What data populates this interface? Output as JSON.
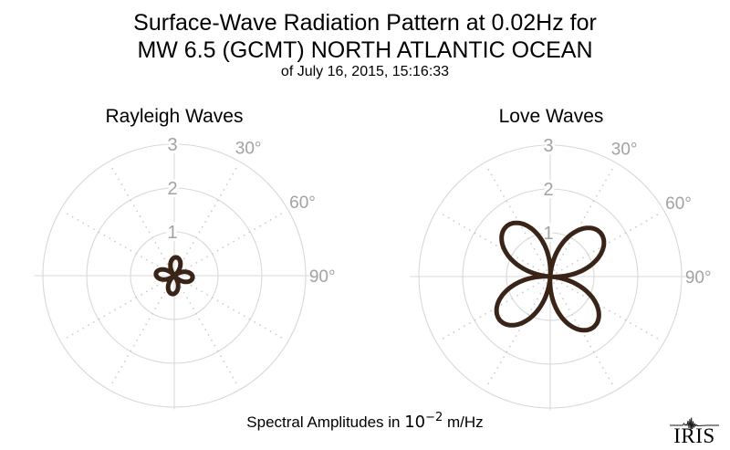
{
  "page": {
    "title_line1": "Surface-Wave Radiation Pattern at 0.02Hz for",
    "title_line2": "MW 6.5 (GCMT) NORTH ATLANTIC OCEAN",
    "subtitle": "of July 16, 2015, 15:16:33",
    "footer": {
      "prefix": "Spectral Amplitudes in ",
      "base": "10",
      "exponent": "−2",
      "suffix": " m/Hz"
    },
    "logo_text": "IRIS"
  },
  "colors": {
    "curve": "#3A2417",
    "grid": "#D8D8D8",
    "grid_dots": "#C8C8C8",
    "tick_label": "#A2A2A2",
    "text": "#000000",
    "background": "#FFFFFF"
  },
  "chart_data": [
    {
      "type": "line",
      "projection": "polar",
      "title": "Rayleigh Waves",
      "pattern_function": "abs_cos_2theta",
      "amplitude": 0.42,
      "rotation_deg": 6,
      "lobe_peak_azimuths_deg": [
        6,
        96,
        186,
        276
      ],
      "lobe_peak_amplitude": 0.42,
      "r_ticks": [
        1,
        2,
        3
      ],
      "r_max": 3,
      "angle_ticks": [
        {
          "label": "30°",
          "azimuth_deg": 30
        },
        {
          "label": "60°",
          "azimuth_deg": 60
        },
        {
          "label": "90°",
          "azimuth_deg": 90
        }
      ],
      "grid_rays_deg": [
        30,
        60,
        120,
        150,
        210,
        240,
        300,
        330
      ],
      "amplitude_units": "10^-2 m/Hz",
      "legend": "none",
      "grid": "on"
    },
    {
      "type": "line",
      "projection": "polar",
      "title": "Love Waves",
      "pattern_function": "abs_sin_2theta",
      "amplitude": 1.52,
      "rotation_deg": 4,
      "lobe_peak_azimuths_deg": [
        49,
        139,
        229,
        319
      ],
      "lobe_peak_amplitude": 1.52,
      "r_ticks": [
        1,
        2,
        3
      ],
      "r_max": 3,
      "angle_ticks": [
        {
          "label": "30°",
          "azimuth_deg": 30
        },
        {
          "label": "60°",
          "azimuth_deg": 60
        },
        {
          "label": "90°",
          "azimuth_deg": 90
        }
      ],
      "grid_rays_deg": [
        30,
        60,
        120,
        150,
        210,
        240,
        300,
        330
      ],
      "amplitude_units": "10^-2 m/Hz",
      "legend": "none",
      "grid": "on"
    }
  ]
}
